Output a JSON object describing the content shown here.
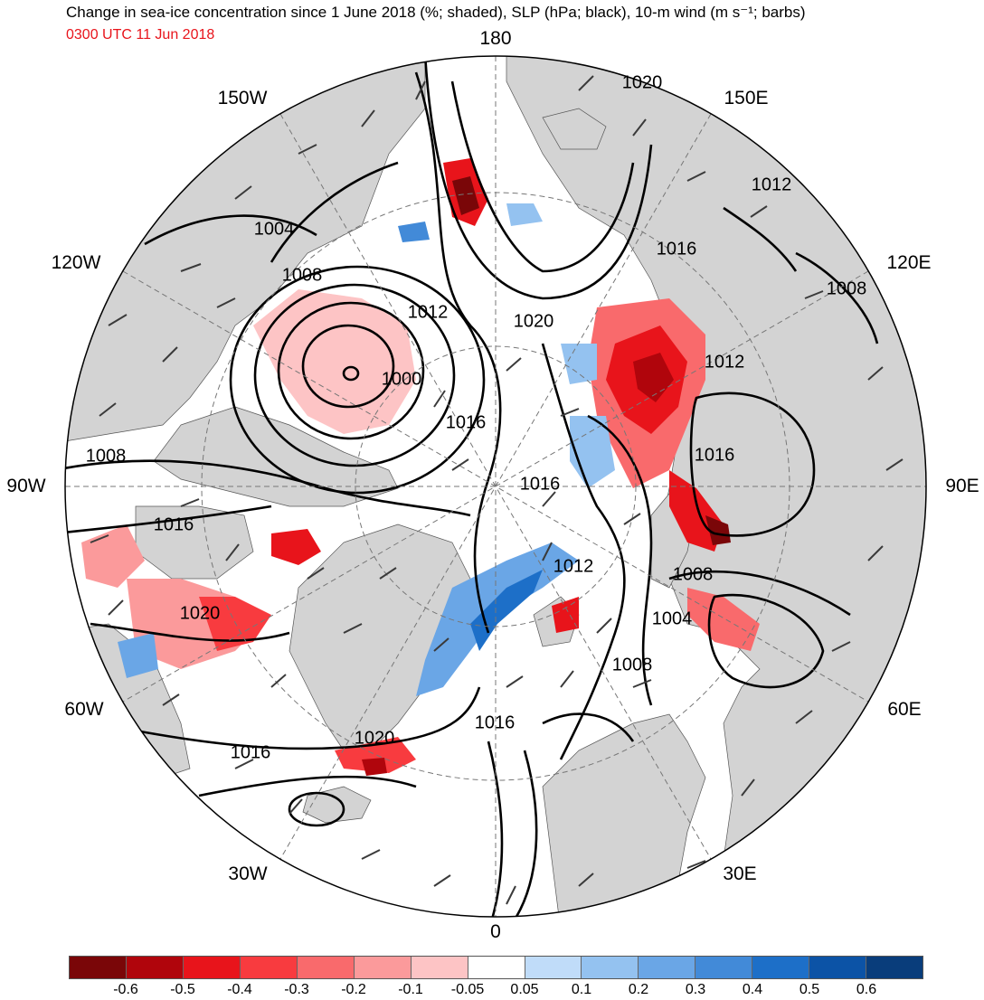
{
  "title": "Change in sea-ice concentration since 1 June 2018 (%; shaded), SLP (hPa; black), 10-m wind (m s⁻¹; barbs)",
  "time_label": "0300 UTC 11 Jun 2018",
  "longitude_labels": {
    "top": "180",
    "bottom": "0",
    "left": "90W",
    "right": "90E",
    "w150": "150W",
    "e150": "150E",
    "w120": "120W",
    "e120": "120E",
    "w60": "60W",
    "e60": "60E",
    "w30": "30W",
    "e30": "30E"
  },
  "isobar_labels": [
    "1020",
    "1012",
    "1004",
    "1008",
    "1012",
    "1020",
    "1000",
    "1016",
    "1016",
    "1012",
    "1016",
    "1008",
    "1016",
    "1012",
    "1008",
    "1004",
    "1020",
    "1008",
    "1016",
    "1020",
    "1016"
  ],
  "colorbar": {
    "colors": [
      "#7a0608",
      "#b0050c",
      "#e8141b",
      "#f83b3f",
      "#f96a6c",
      "#fb9a9b",
      "#fdc4c5",
      "#ffffff",
      "#c0dcf9",
      "#94c2f0",
      "#6aa6e6",
      "#428ad8",
      "#1d6fc8",
      "#0c53a6",
      "#093d7b"
    ],
    "ticks": [
      "-0.6",
      "-0.5",
      "-0.4",
      "-0.3",
      "-0.2",
      "-0.1",
      "-0.05",
      "0.05",
      "0.1",
      "0.2",
      "0.3",
      "0.4",
      "0.5",
      "0.6"
    ]
  },
  "styling": {
    "land": "#d3d3d3",
    "ocean": "#ffffff",
    "isobar": "#000000",
    "barb": "#3a3a3a"
  }
}
